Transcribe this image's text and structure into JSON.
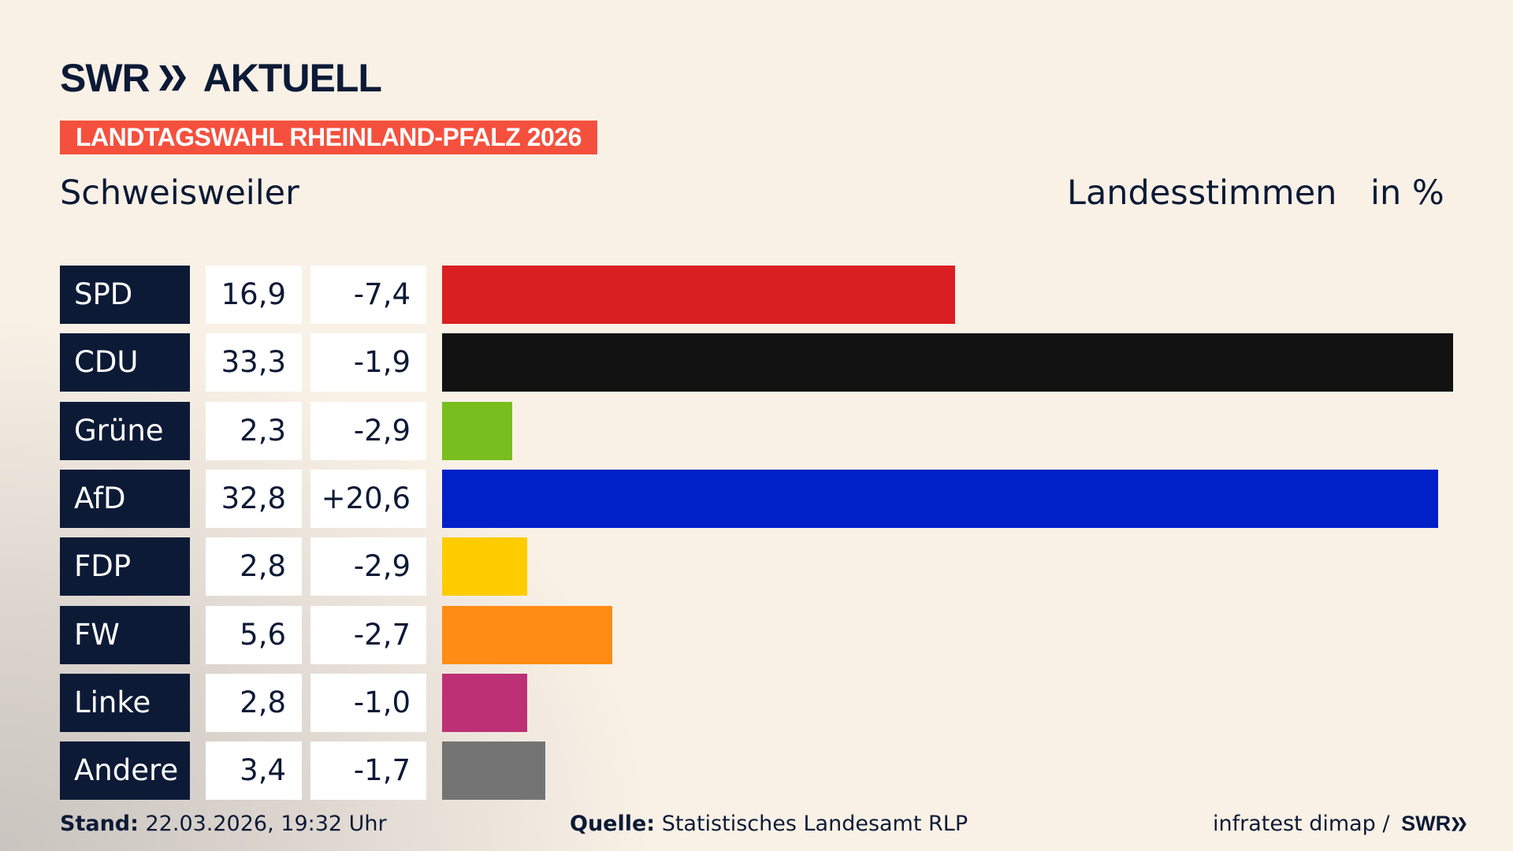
{
  "header": {
    "logo_text": "SWR AKTUELL",
    "badge": "LANDTAGSWAHL RHEINLAND-PFALZ 2026",
    "place": "Schweisweiler",
    "vote_type": "Landesstimmen",
    "unit": "in %"
  },
  "colors": {
    "brand_dark": "#0c1a36",
    "badge": "#f5503e",
    "background": "#f9f1e6"
  },
  "chart_data": {
    "type": "bar",
    "orientation": "horizontal",
    "categories": [
      "SPD",
      "CDU",
      "Grüne",
      "AfD",
      "FDP",
      "FW",
      "Linke",
      "Andere"
    ],
    "values": [
      16.9,
      33.3,
      2.3,
      32.8,
      2.8,
      5.6,
      2.8,
      3.4
    ],
    "value_labels": [
      "16,9",
      "33,3",
      "2,3",
      "32,8",
      "2,8",
      "5,6",
      "2,8",
      "3,4"
    ],
    "diff_labels": [
      "-7,4",
      "-1,9",
      "-2,9",
      "+20,6",
      "-2,9",
      "-2,7",
      "-1,0",
      "-1,7"
    ],
    "diffs": [
      -7.4,
      -1.9,
      -2.9,
      20.6,
      -2.9,
      -2.7,
      -1.0,
      -1.7
    ],
    "bar_colors": [
      "#d91f21",
      "#121212",
      "#78be1e",
      "#0020c8",
      "#ffcc00",
      "#ff8c14",
      "#be3075",
      "#747475"
    ],
    "xlim": [
      0,
      33.3
    ]
  },
  "footer": {
    "stand_label": "Stand:",
    "stand_value": " 22.03.2026, 19:32 Uhr",
    "source_label": "Quelle:",
    "source_value": " Statistisches Landesamt RLP",
    "credit": "infratest dimap / ",
    "credit_logo": "SWR"
  }
}
